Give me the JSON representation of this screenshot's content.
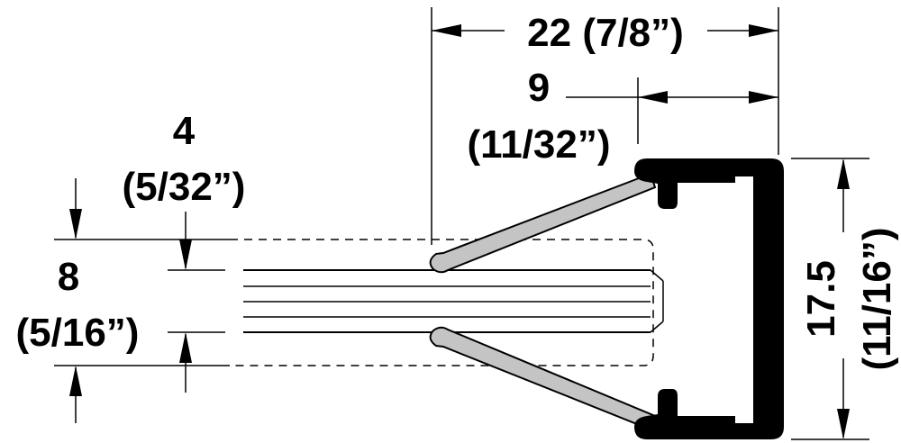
{
  "dimensions": {
    "overall_width": {
      "value": "22",
      "fraction": "(7/8”)",
      "label": "22 (7/8”)"
    },
    "lip_offset": {
      "value": "9",
      "fraction": "(11/32”)"
    },
    "glass_gap": {
      "value": "4",
      "fraction": "(5/32”)"
    },
    "glass_thickness": {
      "value": "8",
      "fraction": "(5/16”)"
    },
    "height": {
      "value": "17.5",
      "fraction": "(11/16”)"
    }
  },
  "colors": {
    "line": "#000000",
    "seal": "#c4c4c4",
    "profile": "#000000",
    "background": "#ffffff"
  }
}
